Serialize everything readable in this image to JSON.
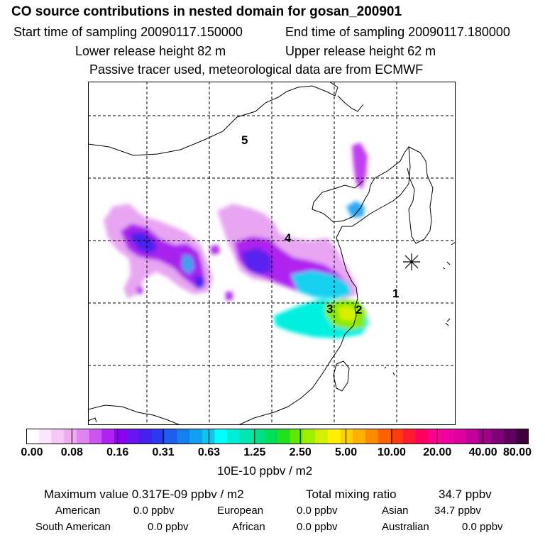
{
  "header": {
    "title": "CO  source contributions in nested domain for gosan_200901",
    "start_sampling": "Start time of sampling 20090117.150000",
    "end_sampling": "End time of sampling 20090117.180000",
    "lower_release": "Lower release height   82 m",
    "upper_release": "Upper release height   62 m",
    "tracer_note": "Passive tracer used, meteorological data are from ECMWF"
  },
  "map": {
    "region_labels": [
      "1",
      "2",
      "3",
      "4",
      "5"
    ],
    "marker": "star"
  },
  "colorbar": {
    "tick_labels": [
      "0.00",
      "0.08",
      "0.16",
      "0.31",
      "0.63",
      "1.25",
      "2.50",
      "5.00",
      "10.00",
      "20.00",
      "40.00",
      "80.00"
    ],
    "units": "10E-10 ppbv / m2",
    "colors": [
      "#ffffff",
      "#fbe6fb",
      "#f5c8f5",
      "#f0aaf0",
      "#e084f0",
      "#cc55f0",
      "#b022f0",
      "#9000f0",
      "#6a14f0",
      "#4420ef",
      "#2a3af0",
      "#1c5ef0",
      "#1480f0",
      "#10a0f0",
      "#10c4f0",
      "#00ffff",
      "#00eed8",
      "#00e6b0",
      "#00e08a",
      "#00dd5a",
      "#20e020",
      "#60e800",
      "#9ef000",
      "#d4f000",
      "#fff000",
      "#ffd000",
      "#ffb000",
      "#ff8a00",
      "#ff6000",
      "#ff3c10",
      "#ff1a30",
      "#ff0060",
      "#ff0090",
      "#f000a0",
      "#dd00a0",
      "#c00098",
      "#a0008a",
      "#80007a",
      "#600060",
      "#400040"
    ]
  },
  "summary": {
    "max_value": "Maximum value  0.317E-09 ppbv / m2",
    "total_mixing_label": "Total mixing ratio",
    "total_mixing_value": "34.7 ppbv",
    "american_label": "American",
    "american_value": "0.0 ppbv",
    "european_label": "European",
    "european_value": "0.0 ppbv",
    "asian_label": "Asian",
    "asian_value": "34.7 ppbv",
    "south_american_label": "South American",
    "south_american_value": "0.0 ppbv",
    "african_label": "African",
    "african_value": "0.0 ppbv",
    "australian_label": "Australian",
    "australian_value": "0.0 ppbv"
  }
}
